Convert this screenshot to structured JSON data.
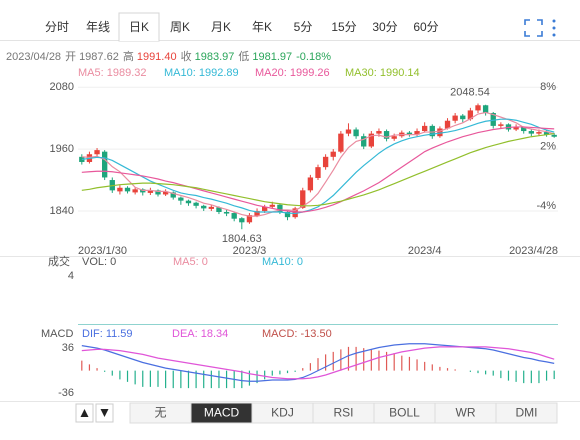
{
  "tabs": [
    "分时",
    "年线",
    "日K",
    "周K",
    "月K",
    "年K",
    "5分",
    "15分",
    "30分",
    "60分"
  ],
  "active_tab": 2,
  "info": {
    "date": "2023/04/28",
    "open_label": "开",
    "open": "1987.62",
    "high_label": "高",
    "high": "1991.40",
    "close_label": "收",
    "close": "1983.97",
    "low_label": "低",
    "low": "1981.97",
    "change": "-0.18%"
  },
  "indicators": [
    "无",
    "MACD",
    "KDJ",
    "RSI",
    "BOLL",
    "WR",
    "DMI"
  ],
  "active_indicator": 1,
  "chart_data": [
    {
      "type": "candlestick",
      "categories": [
        "2023/1/30",
        null,
        null,
        null,
        null,
        null,
        null,
        null,
        null,
        null,
        null,
        null,
        null,
        null,
        null,
        null,
        null,
        null,
        null,
        null,
        null,
        null,
        "2023/3",
        null,
        null,
        null,
        null,
        null,
        null,
        null,
        null,
        null,
        null,
        null,
        null,
        null,
        null,
        null,
        null,
        null,
        null,
        null,
        null,
        null,
        null,
        "2023/4",
        null,
        null,
        null,
        null,
        null,
        null,
        null,
        null,
        null,
        null,
        null,
        null,
        null,
        null,
        null,
        null,
        "2023/4/28"
      ],
      "ohlc": [
        [
          1945,
          1950,
          1930,
          1935
        ],
        [
          1935,
          1955,
          1932,
          1950
        ],
        [
          1950,
          1962,
          1945,
          1958
        ],
        [
          1955,
          1958,
          1900,
          1905
        ],
        [
          1900,
          1905,
          1875,
          1880
        ],
        [
          1878,
          1890,
          1872,
          1885
        ],
        [
          1885,
          1888,
          1874,
          1878
        ],
        [
          1876,
          1886,
          1872,
          1882
        ],
        [
          1882,
          1884,
          1870,
          1876
        ],
        [
          1875,
          1885,
          1871,
          1880
        ],
        [
          1880,
          1882,
          1868,
          1872
        ],
        [
          1872,
          1882,
          1869,
          1878
        ],
        [
          1876,
          1878,
          1862,
          1866
        ],
        [
          1866,
          1868,
          1852,
          1860
        ],
        [
          1860,
          1862,
          1850,
          1855
        ],
        [
          1856,
          1858,
          1845,
          1850
        ],
        [
          1850,
          1852,
          1840,
          1845
        ],
        [
          1844,
          1852,
          1840,
          1848
        ],
        [
          1847,
          1849,
          1834,
          1838
        ],
        [
          1838,
          1842,
          1830,
          1835
        ],
        [
          1836,
          1838,
          1820,
          1825
        ],
        [
          1826,
          1828,
          1804.63,
          1818
        ],
        [
          1818,
          1836,
          1815,
          1832
        ],
        [
          1830,
          1845,
          1828,
          1840
        ],
        [
          1840,
          1852,
          1836,
          1848
        ],
        [
          1848,
          1858,
          1844,
          1852
        ],
        [
          1852,
          1854,
          1834,
          1838
        ],
        [
          1838,
          1840,
          1822,
          1828
        ],
        [
          1828,
          1848,
          1825,
          1845
        ],
        [
          1846,
          1885,
          1844,
          1880
        ],
        [
          1880,
          1910,
          1876,
          1905
        ],
        [
          1904,
          1930,
          1900,
          1925
        ],
        [
          1925,
          1950,
          1920,
          1945
        ],
        [
          1945,
          1960,
          1938,
          1955
        ],
        [
          1955,
          1995,
          1952,
          1990
        ],
        [
          1990,
          2010,
          1985,
          1998
        ],
        [
          1998,
          2002,
          1980,
          1985
        ],
        [
          1985,
          1990,
          1960,
          1965
        ],
        [
          1965,
          1995,
          1962,
          1990
        ],
        [
          1990,
          2000,
          1984,
          1995
        ],
        [
          1995,
          1998,
          1975,
          1980
        ],
        [
          1980,
          1990,
          1976,
          1985
        ],
        [
          1985,
          1996,
          1982,
          1992
        ],
        [
          1992,
          1995,
          1984,
          1988
        ],
        [
          1988,
          2000,
          1985,
          1995
        ],
        [
          1995,
          2012,
          1992,
          2005
        ],
        [
          2005,
          2008,
          1980,
          1985
        ],
        [
          1985,
          2004,
          1982,
          2000
        ],
        [
          2000,
          2020,
          1998,
          2015
        ],
        [
          2015,
          2030,
          2010,
          2025
        ],
        [
          2025,
          2028,
          2012,
          2018
        ],
        [
          2018,
          2040,
          2015,
          2035
        ],
        [
          2035,
          2048.54,
          2030,
          2045
        ],
        [
          2045,
          2046,
          2025,
          2030
        ],
        [
          2030,
          2032,
          2000,
          2005
        ],
        [
          2005,
          2012,
          2000,
          2008
        ],
        [
          2008,
          2010,
          1994,
          1998
        ],
        [
          1998,
          2008,
          1995,
          2002
        ],
        [
          2002,
          2004,
          1990,
          1995
        ],
        [
          1995,
          1998,
          1985,
          1990
        ],
        [
          1990,
          1998,
          1986,
          1993
        ],
        [
          1993,
          1996,
          1984,
          1988
        ],
        [
          1987.62,
          1991.4,
          1981.97,
          1983.97
        ]
      ],
      "up_color": "#e8433b",
      "down_color": "#1ea57c",
      "series": [
        {
          "name": "MA5: 1989.32",
          "color": "#ea8ca0",
          "values": [
            1945,
            1944,
            1946,
            1940,
            1926,
            1916,
            1901,
            1886,
            1880,
            1880,
            1878,
            1878,
            1874,
            1870,
            1866,
            1861,
            1855,
            1852,
            1847,
            1843,
            1838,
            1833,
            1830,
            1830,
            1833,
            1838,
            1842,
            1842,
            1841,
            1849,
            1859,
            1874,
            1896,
            1919,
            1944,
            1963,
            1975,
            1979,
            1986,
            1987,
            1983,
            1987,
            1988,
            1988,
            1988,
            1993,
            1993,
            1995,
            2000,
            2006,
            2011,
            2019,
            2028,
            2031,
            2027,
            2022,
            2017,
            2011,
            2002,
            1999,
            1996,
            1994,
            1989.32
          ]
        },
        {
          "name": "MA10: 1992.89",
          "color": "#35b9d6",
          "values": [
            1940,
            1942,
            1944,
            1943,
            1938,
            1930,
            1922,
            1914,
            1906,
            1898,
            1892,
            1886,
            1880,
            1875,
            1872,
            1870,
            1866,
            1863,
            1859,
            1855,
            1850,
            1846,
            1841,
            1838,
            1838,
            1838,
            1838,
            1836,
            1835,
            1838,
            1842,
            1848,
            1858,
            1870,
            1885,
            1900,
            1915,
            1928,
            1940,
            1952,
            1962,
            1970,
            1976,
            1981,
            1984,
            1987,
            1989,
            1991,
            1993,
            1996,
            2000,
            2005,
            2010,
            2014,
            2016,
            2018,
            2018,
            2016,
            2012,
            2008,
            2002,
            1997,
            1992.89
          ]
        },
        {
          "name": "MA20: 1999.26",
          "color": "#e8589b",
          "values": [
            1915,
            1916,
            1917,
            1917,
            1916,
            1914,
            1912,
            1910,
            1908,
            1905,
            1902,
            1898,
            1895,
            1891,
            1887,
            1883,
            1879,
            1875,
            1871,
            1867,
            1863,
            1859,
            1855,
            1851,
            1848,
            1845,
            1842,
            1840,
            1838,
            1838,
            1840,
            1843,
            1847,
            1852,
            1858,
            1865,
            1872,
            1879,
            1887,
            1895,
            1905,
            1915,
            1925,
            1935,
            1945,
            1955,
            1962,
            1968,
            1974,
            1979,
            1984,
            1988,
            1992,
            1995,
            1998,
            2000,
            2002,
            2003,
            2003,
            2002,
            2001,
            2000,
            1999.26
          ]
        },
        {
          "name": "MA30: 1990.14",
          "color": "#92bf2c",
          "values": [
            1880,
            1882,
            1885,
            1887,
            1889,
            1891,
            1892,
            1893,
            1894,
            1894,
            1893,
            1892,
            1891,
            1889,
            1887,
            1885,
            1882,
            1879,
            1876,
            1873,
            1870,
            1867,
            1864,
            1861,
            1858,
            1856,
            1854,
            1852,
            1851,
            1850,
            1850,
            1851,
            1853,
            1856,
            1859,
            1863,
            1867,
            1871,
            1876,
            1881,
            1887,
            1893,
            1899,
            1905,
            1911,
            1917,
            1923,
            1929,
            1935,
            1941,
            1947,
            1953,
            1958,
            1963,
            1967,
            1971,
            1975,
            1978,
            1981,
            1984,
            1986,
            1988,
            1990.14
          ]
        }
      ],
      "ylim": [
        1774,
        2094
      ],
      "yticks": [
        2080,
        1960,
        1840
      ],
      "y2lim": [
        -7.9,
        8.7
      ],
      "y2ticks": [
        {
          "value": 8,
          "label": "8%"
        },
        {
          "value": 2,
          "label": "2%"
        },
        {
          "value": -4,
          "label": "-4%"
        }
      ],
      "grid": true
    },
    {
      "type": "volume",
      "title": "成交",
      "series": [
        {
          "name": "VOL: 0",
          "color": "#555555"
        },
        {
          "name": "MA5: 0",
          "color": "#ea8ca0"
        },
        {
          "name": "MA10: 0",
          "color": "#35b9d6"
        }
      ],
      "ylim": [
        0,
        5.5
      ],
      "yticks": [
        4
      ]
    },
    {
      "type": "macd",
      "title": "MACD",
      "series": [
        {
          "name": "DIF: 11.59",
          "color": "#4a6fe0",
          "values": [
            40,
            38,
            36,
            33,
            29,
            25,
            21,
            17,
            13,
            10,
            7,
            4,
            2,
            0,
            -2,
            -4,
            -6,
            -8,
            -10,
            -12,
            -14,
            -16,
            -17,
            -17,
            -16,
            -15,
            -15,
            -15,
            -14,
            -11,
            -6,
            0,
            6,
            12,
            18,
            24,
            28,
            31,
            34,
            37,
            39,
            41,
            42,
            43,
            43,
            43,
            42,
            41,
            40,
            39,
            38,
            37,
            36,
            35,
            33,
            30,
            27,
            24,
            21,
            19,
            16,
            14,
            11.59
          ]
        },
        {
          "name": "DEA: 18.34",
          "color": "#e055d8",
          "values": [
            32,
            33,
            34,
            34,
            33,
            32,
            30,
            28,
            26,
            23,
            20,
            18,
            16,
            14,
            12,
            10,
            8,
            6,
            4,
            2,
            0,
            -2,
            -5,
            -7,
            -9,
            -11,
            -12,
            -13,
            -13,
            -13,
            -12,
            -10,
            -7,
            -3,
            1,
            5,
            9,
            13,
            17,
            21,
            24,
            27,
            30,
            32,
            34,
            36,
            37,
            38,
            38,
            38,
            38,
            38,
            38,
            38,
            37,
            36,
            35,
            33,
            31,
            29,
            26,
            22,
            18.34
          ]
        },
        {
          "name": "MACD: -13.50",
          "color": "#c0504a",
          "bars": true,
          "up_color": "#e05a55",
          "down_color": "#22b08c",
          "values": [
            16,
            10,
            4,
            -2,
            -8,
            -14,
            -18,
            -22,
            -26,
            -26,
            -26,
            -28,
            -28,
            -28,
            -28,
            -28,
            -28,
            -28,
            -28,
            -28,
            -28,
            -28,
            -24,
            -20,
            -14,
            -8,
            -6,
            -4,
            -2,
            4,
            12,
            20,
            26,
            30,
            34,
            38,
            38,
            36,
            34,
            32,
            30,
            28,
            24,
            22,
            18,
            14,
            10,
            6,
            4,
            2,
            0,
            -2,
            -4,
            -6,
            -8,
            -12,
            -16,
            -18,
            -20,
            -20,
            -20,
            -16,
            -13.5
          ]
        }
      ],
      "ylim": [
        -47,
        65
      ],
      "yticks": [
        36,
        -36
      ]
    }
  ]
}
